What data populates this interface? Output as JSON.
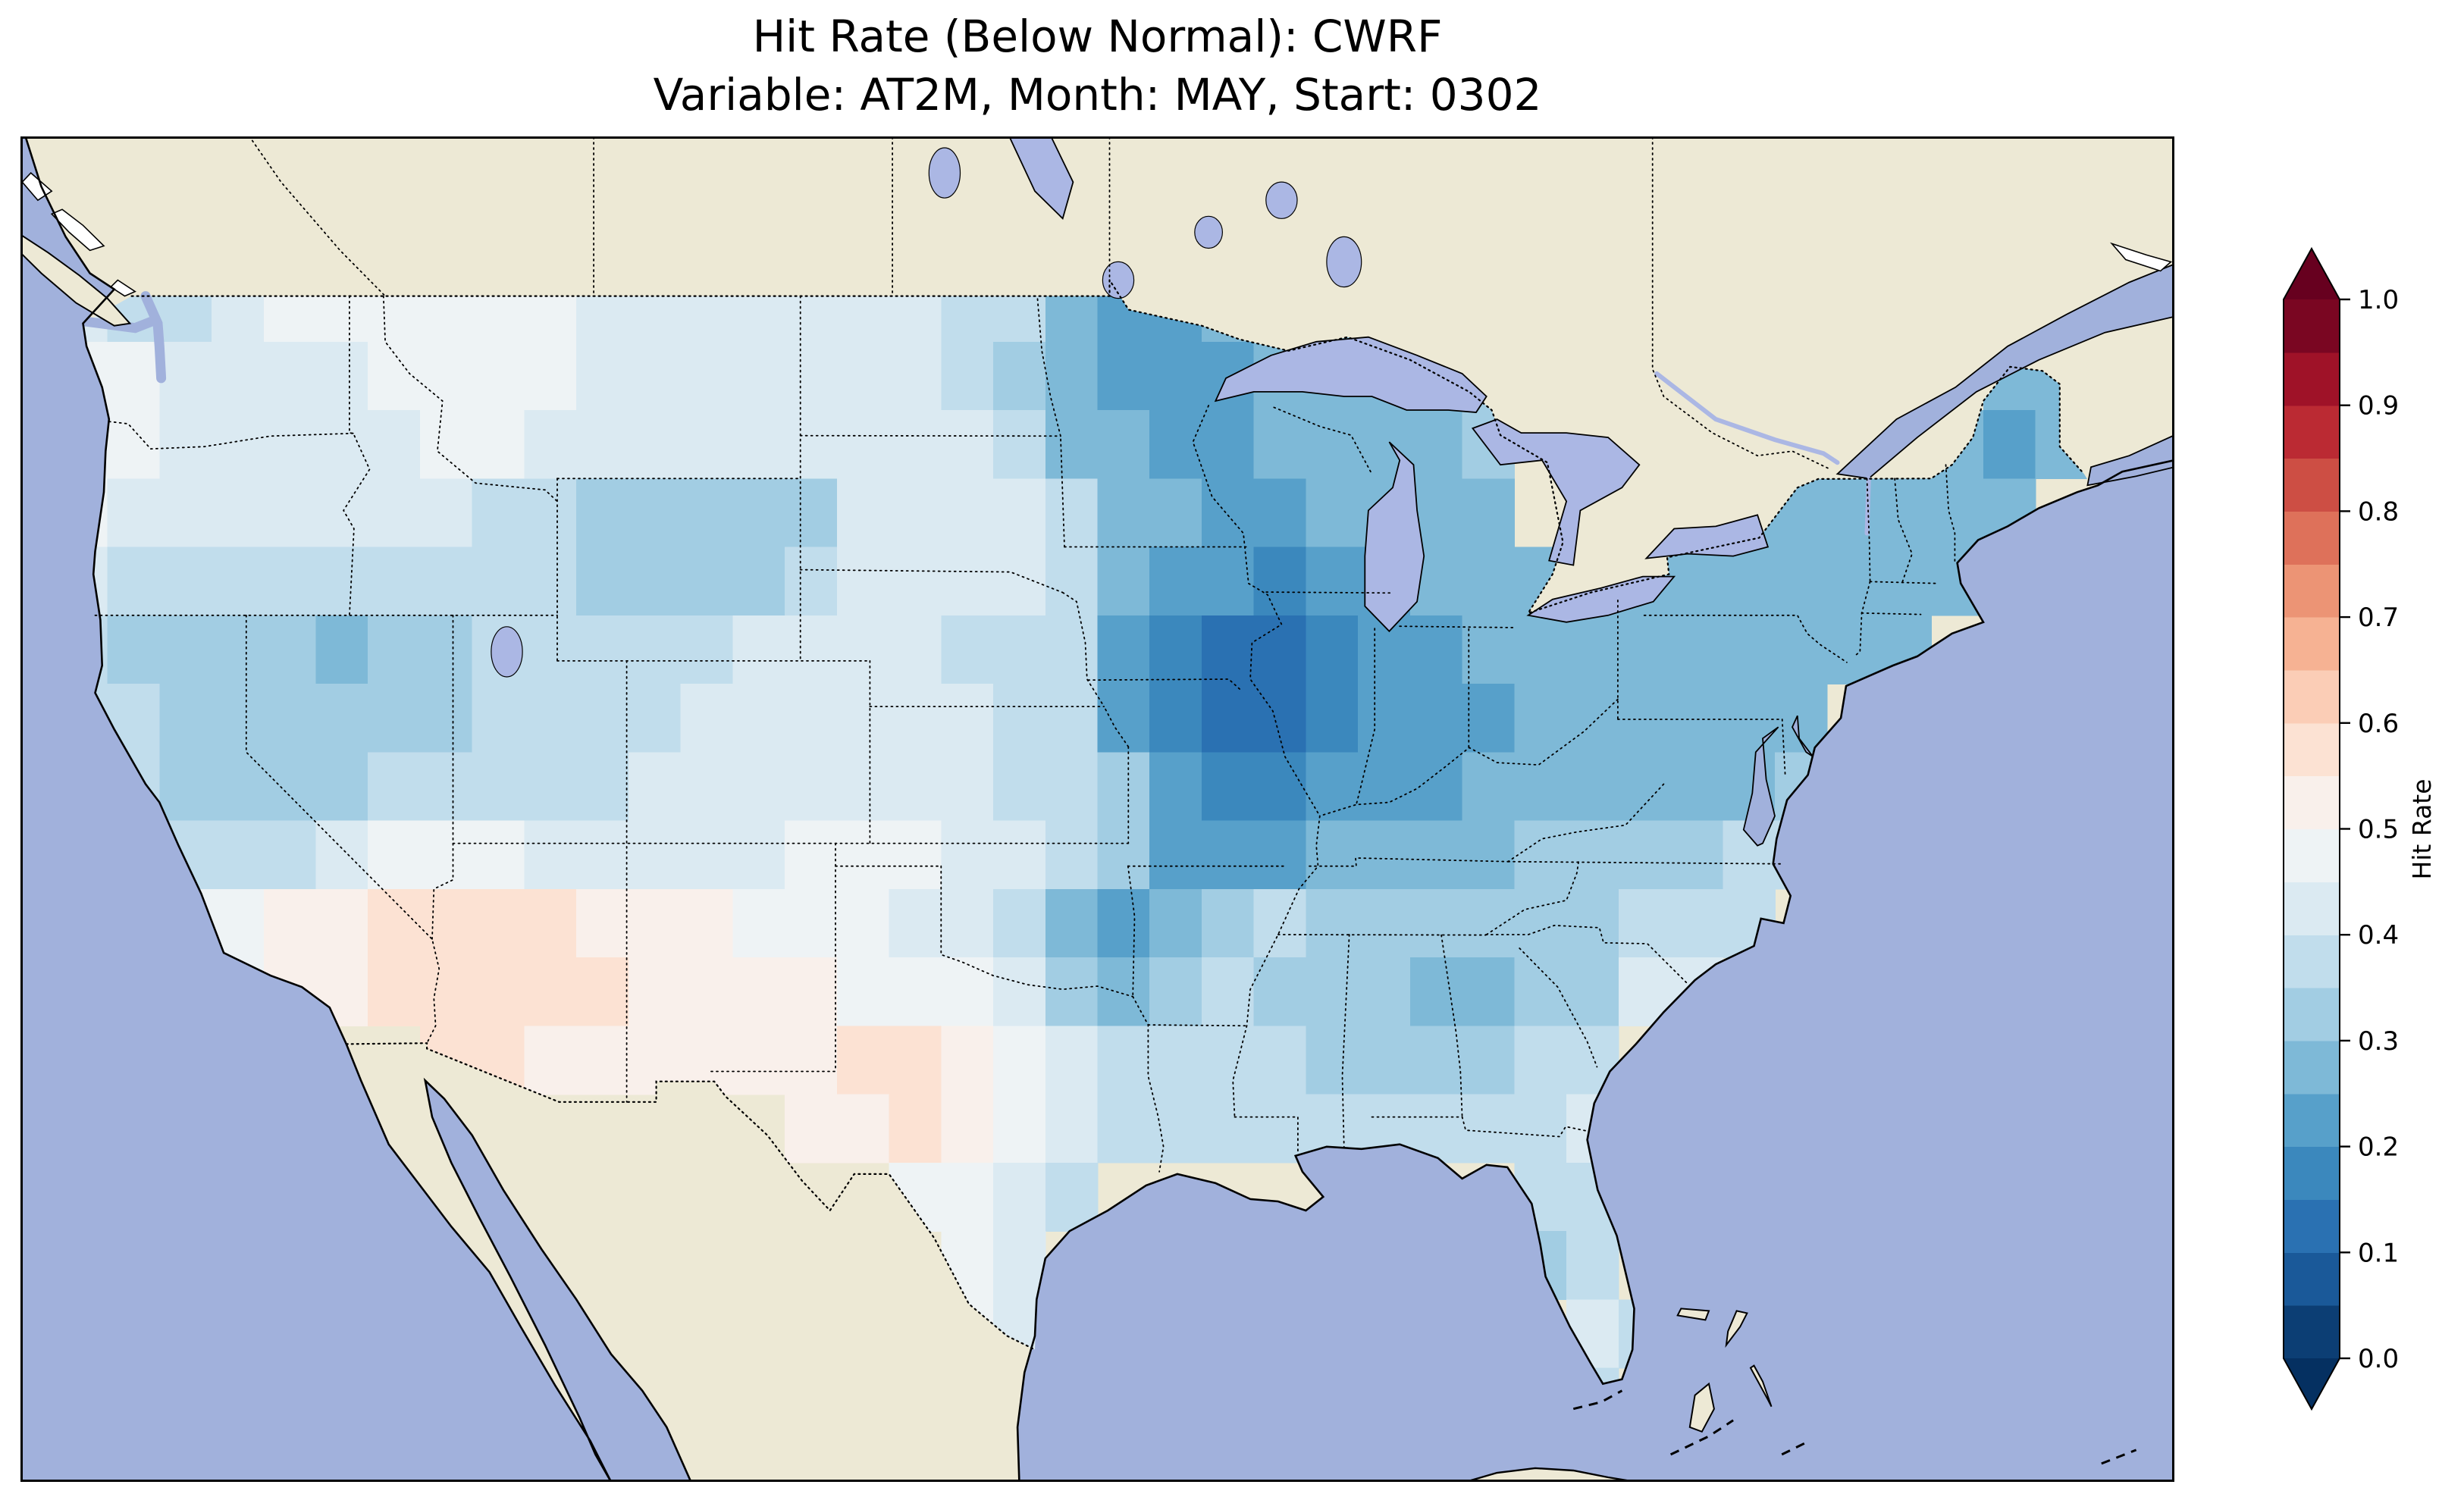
{
  "title": {
    "line1": "Hit Rate (Below Normal): CWRF",
    "line2": "Variable: AT2M, Month: MAY, Start: 0302"
  },
  "colorbar": {
    "label": "Hit Rate",
    "ticks": [
      "0.0",
      "0.1",
      "0.2",
      "0.3",
      "0.4",
      "0.5",
      "0.6",
      "0.7",
      "0.8",
      "0.9",
      "1.0"
    ],
    "bin_width": 0.05,
    "extend": "both",
    "orientation": "vertical"
  },
  "colors": {
    "ocean": "#a1b1dc",
    "lake": "#abb7e4",
    "land": "#ede9d5",
    "coastline": "#000000",
    "border_dotted": "#000000"
  },
  "chart_data": {
    "type": "heatmap",
    "title": "Hit Rate (Below Normal): CWRF",
    "subtitle": "Variable: AT2M, Month: MAY, Start: 0302",
    "model": "CWRF",
    "metric": "Hit Rate (Below Normal)",
    "variable": "AT2M",
    "month": "MAY",
    "start": "0302",
    "region": "Contiguous United States",
    "value_range": [
      0,
      1
    ],
    "colormap": "RdBu_r discrete, 0.05 bins, extend both",
    "colormap_anchors": [
      [
        0.0,
        "#053061"
      ],
      [
        0.1,
        "#2166ac"
      ],
      [
        0.2,
        "#4393c3"
      ],
      [
        0.3,
        "#92c5de"
      ],
      [
        0.4,
        "#d1e5f0"
      ],
      [
        0.5,
        "#f7f7f7"
      ],
      [
        0.6,
        "#fddbc7"
      ],
      [
        0.7,
        "#f4a582"
      ],
      [
        0.8,
        "#d6604d"
      ],
      [
        0.9,
        "#b2182b"
      ],
      [
        1.0,
        "#67001f"
      ]
    ],
    "grid": {
      "comment": "Approximate hit-rate field. Each char is one 1.5deg cell; 'a'=0.025 then +0.05 per letter (b=0.075 ... m=0.625); '.'=no data. Rows top(49.5N) to bottom, cols west(-125.5) to east.",
      "lon0": -125.5,
      "dlon": 1.5,
      "lat0": 49.5,
      "dlat": 1.5,
      "ncols": 40,
      "nrows": 18,
      "rows": [
        "ihhijjjjjjiiiiiiihhfeefffgg.............",
        "jjiiiijjjjiiiiiiihgfeeefffgg.........ff.",
        "jjiiiiijjiiiiiiiiihffeeffffg........fef.",
        "jiiiiiiihhgggggiiiihffeeffff..ffffffff..",
        "ihhhhhhhhhgggghiiiihfeedeefffffffffff...",
        "hggggfgghhhhhiiiihhhedccdeefffffffff....",
        "hhgggggghhhhiiiiiihhedccdeeeffffff......",
        "hhgggghhhhhiiiiiiihhgeddeeeffffffg......",
        "hhhhhijjjiiiiijjjiihgeeeffffgggghh......",
        "hhjjkkllllkkkjjjiihfefghgggggghhh.......",
        ".hjjkklllllkkkkjjjigfghgggffggii........",
        ".......llkkkkkkllkjihhhhgggghh..........",
        "..............kklkjihhhhhhhhhii.........",
        "................jjih........hh..........",
        ".................ji.........gh..........",
        ".................ji..........ih.........",
        ".............................h..........",
        "........................................"
      ]
    }
  }
}
